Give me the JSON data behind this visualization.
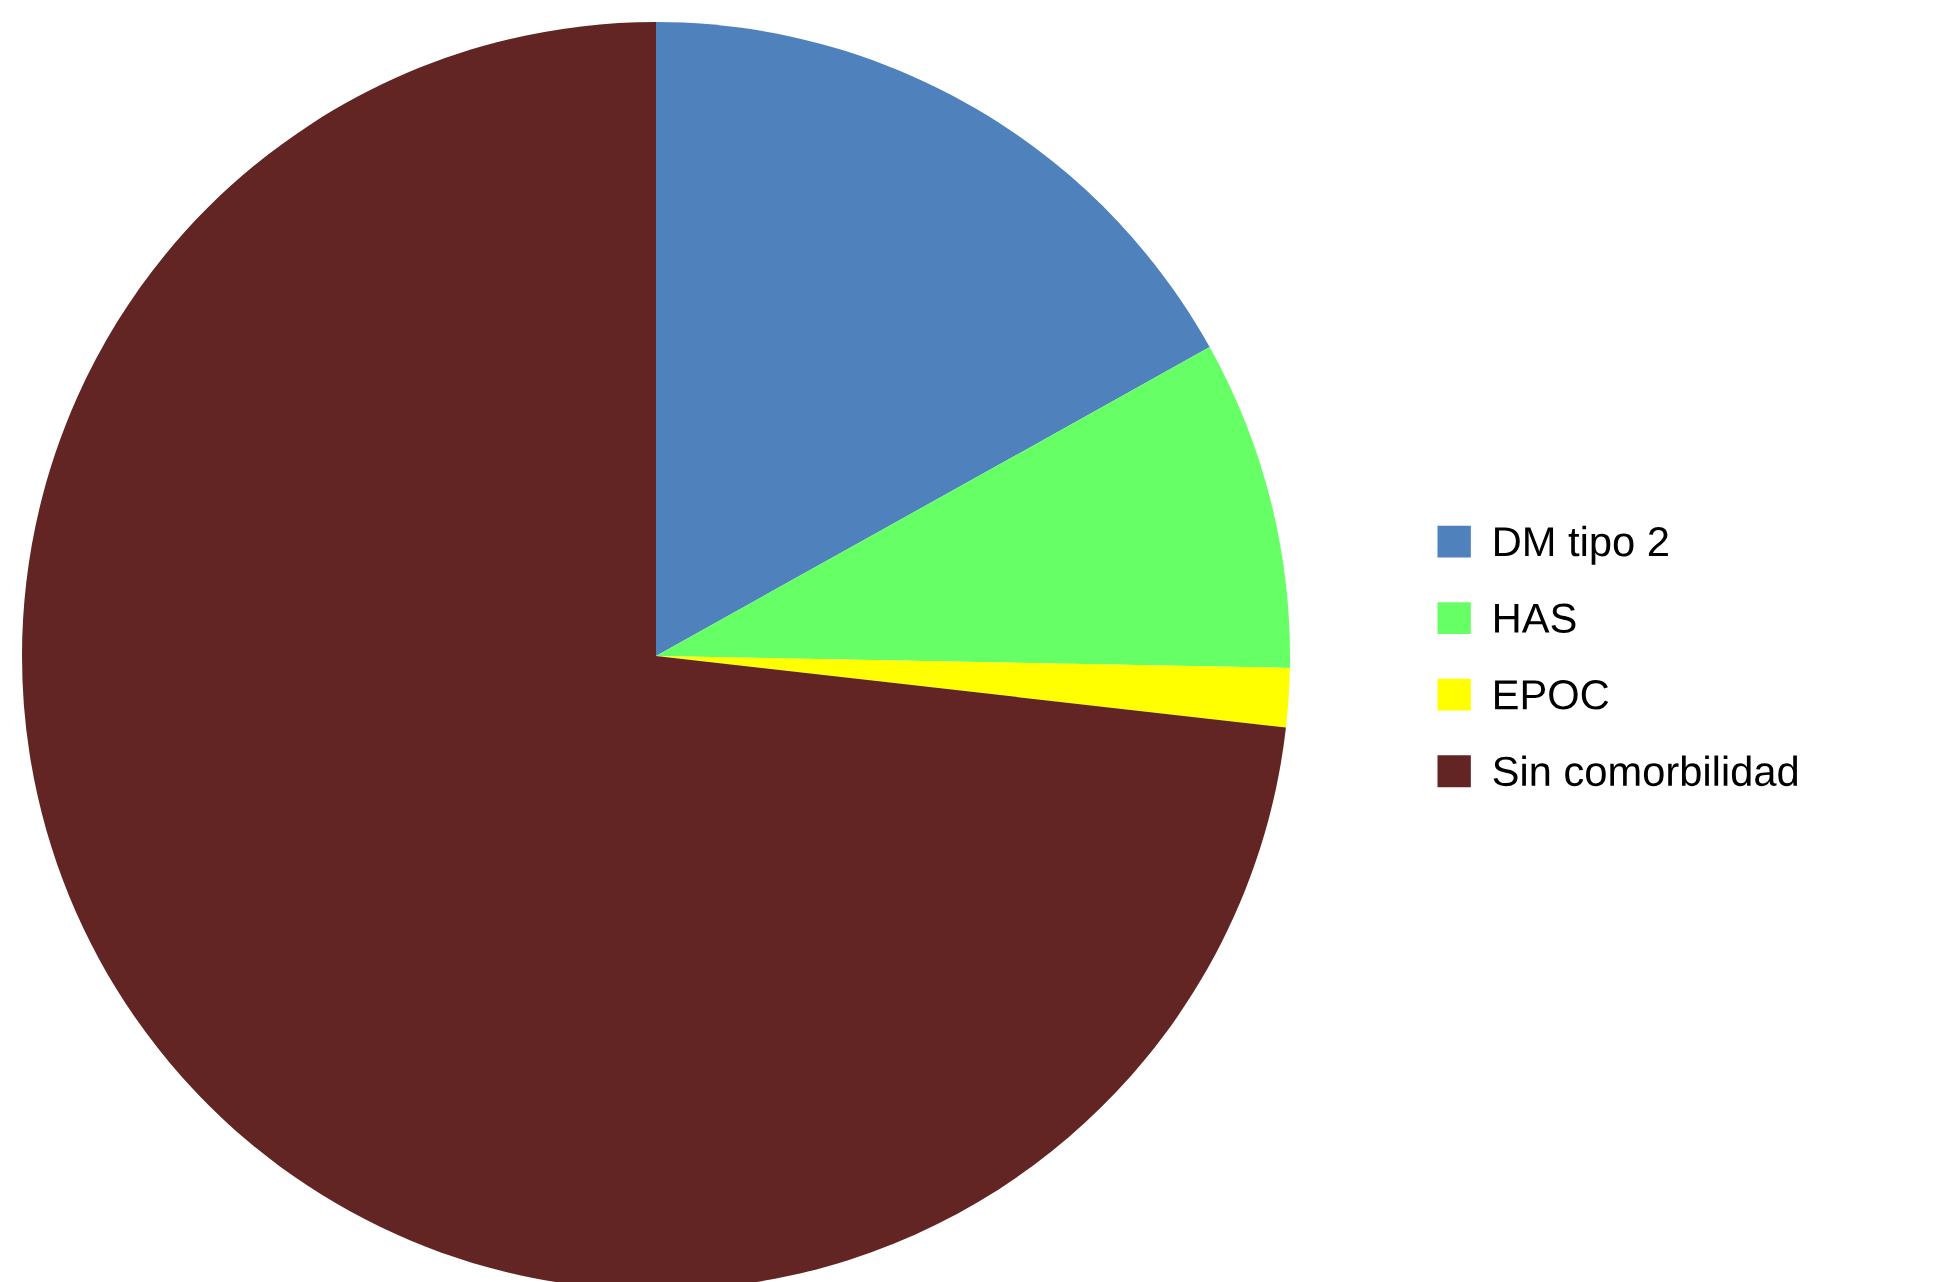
{
  "chart_data": {
    "type": "pie",
    "categories": [
      "DM tipo 2",
      "HAS",
      "EPOC",
      "Sin comorbilidad"
    ],
    "values": [
      16.9,
      8.4,
      1.5,
      73.2
    ],
    "colors": [
      "#4f81bd",
      "#66ff66",
      "#ffff00",
      "#632523"
    ],
    "legend": "right"
  }
}
